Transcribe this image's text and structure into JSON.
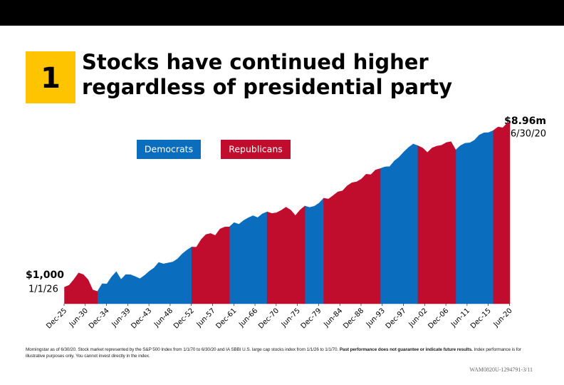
{
  "chart_data": {
    "type": "area",
    "badge": "1",
    "title_lines": [
      "Stocks have continued higher",
      "regardless of presidential party"
    ],
    "log_scale": true,
    "ylim": [
      400,
      15000000
    ],
    "xlim": [
      1925.92,
      2020.5
    ],
    "xticks": [
      {
        "value": 1925.92,
        "label": "Dec-25"
      },
      {
        "value": 1930.42,
        "label": "Jun-30"
      },
      {
        "value": 1934.92,
        "label": "Dec-34"
      },
      {
        "value": 1939.42,
        "label": "Jun-39"
      },
      {
        "value": 1943.92,
        "label": "Dec-43"
      },
      {
        "value": 1948.42,
        "label": "Jun-48"
      },
      {
        "value": 1952.92,
        "label": "Dec-52"
      },
      {
        "value": 1957.42,
        "label": "Jun-57"
      },
      {
        "value": 1961.92,
        "label": "Dec-61"
      },
      {
        "value": 1966.42,
        "label": "Jun-66"
      },
      {
        "value": 1970.92,
        "label": "Dec-70"
      },
      {
        "value": 1975.42,
        "label": "Jun-75"
      },
      {
        "value": 1979.92,
        "label": "Dec-79"
      },
      {
        "value": 1984.42,
        "label": "Jun-84"
      },
      {
        "value": 1988.92,
        "label": "Dec-88"
      },
      {
        "value": 1993.42,
        "label": "Jun-93"
      },
      {
        "value": 1997.92,
        "label": "Dec-97"
      },
      {
        "value": 2002.42,
        "label": "Jun-02"
      },
      {
        "value": 2006.92,
        "label": "Dec-06"
      },
      {
        "value": 2011.42,
        "label": "Jun-11"
      },
      {
        "value": 2015.92,
        "label": "Dec-15"
      },
      {
        "value": 2020.42,
        "label": "Jun-20"
      }
    ],
    "x": [
      1926,
      1927,
      1928,
      1929,
      1930,
      1931,
      1932,
      1933,
      1934,
      1935,
      1936,
      1937,
      1938,
      1939,
      1940,
      1941,
      1942,
      1943,
      1944,
      1945,
      1946,
      1947,
      1948,
      1949,
      1950,
      1951,
      1952,
      1953,
      1954,
      1955,
      1956,
      1957,
      1958,
      1959,
      1960,
      1961,
      1962,
      1963,
      1964,
      1965,
      1966,
      1967,
      1968,
      1969,
      1970,
      1971,
      1972,
      1973,
      1974,
      1975,
      1976,
      1977,
      1978,
      1979,
      1980,
      1981,
      1982,
      1983,
      1984,
      1985,
      1986,
      1987,
      1988,
      1989,
      1990,
      1991,
      1992,
      1993,
      1994,
      1995,
      1996,
      1997,
      1998,
      1999,
      2000,
      2001,
      2002,
      2003,
      2004,
      2005,
      2006,
      2007,
      2008,
      2009,
      2010,
      2011,
      2012,
      2013,
      2014,
      2015,
      2016,
      2017,
      2018,
      2019,
      2020,
      2020.5
    ],
    "values": [
      1000,
      1116,
      1535,
      2204,
      2019,
      1516,
      859,
      789,
      1214,
      1197,
      1767,
      2367,
      1538,
      2016,
      2008,
      1812,
      1602,
      1927,
      2427,
      2906,
      3965,
      3645,
      3853,
      4065,
      4829,
      6360,
      7888,
      9336,
      9244,
      14108,
      18561,
      19778,
      17646,
      25298,
      28322,
      28455,
      36106,
      32954,
      40469,
      47139,
      53008,
      47674,
      59104,
      65642,
      60059,
      62465,
      71406,
      84956,
      72500,
      53311,
      73144,
      90584,
      84077,
      89592,
      106113,
      140514,
      133616,
      162223,
      198745,
      211199,
      279117,
      330671,
      347967,
      405458,
      533626,
      517050,
      674592,
      725971,
      799112,
      809704,
      1113918,
      1369558,
      1826463,
      2348518,
      2842606,
      2583836,
      2276832,
      1773676,
      2282480,
      2530763,
      2655040,
      3074385,
      3243324,
      2043458,
      2584264,
      2973467,
      3036318,
      3522234,
      4663060,
      5300810,
      5374112,
      6016758,
      7330121,
      7008890,
      9215820,
      8960000
    ],
    "series": [
      {
        "name": "Democrats",
        "color": "#0a6dbd",
        "ranges": [
          [
            1933,
            1953
          ],
          [
            1961,
            1969
          ],
          [
            1977,
            1981
          ],
          [
            1993,
            2001
          ],
          [
            2009,
            2017
          ]
        ]
      },
      {
        "name": "Republicans",
        "color": "#c00d2e",
        "ranges": [
          [
            1926,
            1933
          ],
          [
            1953,
            1961
          ],
          [
            1969,
            1977
          ],
          [
            1981,
            1993
          ],
          [
            2001,
            2009
          ],
          [
            2017,
            2020.5
          ]
        ]
      }
    ],
    "annotations": {
      "start_value": "$1,000",
      "start_date": "1/1/26",
      "end_value": "$8.96m",
      "end_date": "6/30/20"
    },
    "footnote": {
      "text1": "Morningstar as of 6/30/20.  Stock market represented by the S&P 500 Index from 1/1/70 to 6/30/20 and  IA SBBI U.S. large cap stocks index from 1/1/26 to 1/1/70. ",
      "bold": "Past performance does not guarantee or indicate future results.",
      "text2": " Index performance is for illustrative purposes only. You cannot invest directly in the index."
    },
    "code": "WAM0820U-1294791-3/11"
  }
}
